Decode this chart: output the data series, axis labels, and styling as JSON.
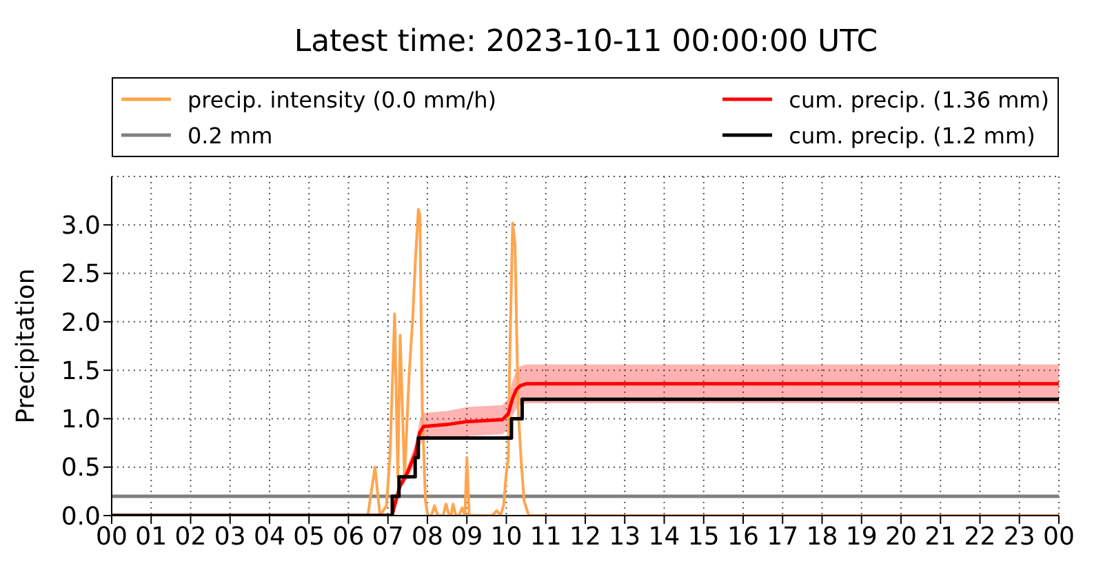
{
  "chart_data": {
    "type": "line",
    "title": "Latest time: 2023-10-11 00:00:00 UTC",
    "ylabel": "Precipitation",
    "xlim": [
      0,
      24
    ],
    "xticks": [
      {
        "value": 0,
        "label": "00"
      },
      {
        "value": 1,
        "label": "01"
      },
      {
        "value": 2,
        "label": "02"
      },
      {
        "value": 3,
        "label": "03"
      },
      {
        "value": 4,
        "label": "04"
      },
      {
        "value": 5,
        "label": "05"
      },
      {
        "value": 6,
        "label": "06"
      },
      {
        "value": 7,
        "label": "07"
      },
      {
        "value": 8,
        "label": "08"
      },
      {
        "value": 9,
        "label": "09"
      },
      {
        "value": 10,
        "label": "10"
      },
      {
        "value": 11,
        "label": "11"
      },
      {
        "value": 12,
        "label": "12"
      },
      {
        "value": 13,
        "label": "13"
      },
      {
        "value": 14,
        "label": "14"
      },
      {
        "value": 15,
        "label": "15"
      },
      {
        "value": 16,
        "label": "16"
      },
      {
        "value": 17,
        "label": "17"
      },
      {
        "value": 18,
        "label": "18"
      },
      {
        "value": 19,
        "label": "19"
      },
      {
        "value": 20,
        "label": "20"
      },
      {
        "value": 21,
        "label": "21"
      },
      {
        "value": 22,
        "label": "22"
      },
      {
        "value": 23,
        "label": "23"
      },
      {
        "value": 24,
        "label": "00"
      }
    ],
    "ylim": [
      0,
      3.5
    ],
    "yticks": [
      {
        "value": 0,
        "label": "0.0"
      },
      {
        "value": 0.5,
        "label": "0.5"
      },
      {
        "value": 1,
        "label": "1.0"
      },
      {
        "value": 1.5,
        "label": "1.5"
      },
      {
        "value": 2,
        "label": "2.0"
      },
      {
        "value": 2.5,
        "label": "2.5"
      },
      {
        "value": 3,
        "label": "3.0"
      }
    ],
    "grid": true,
    "legend": "top",
    "marker": "none",
    "line_style": "solid",
    "ref_lines": [
      {
        "axis": "y",
        "value": 0.2,
        "label": "0.2 mm",
        "color": "#808080"
      }
    ],
    "series": [
      {
        "name": "precip. intensity (0.0 mm/h)",
        "color": "#ffa54f",
        "x": [
          0,
          6.49,
          6.67,
          6.8,
          6.96,
          7.05,
          7.17,
          7.25,
          7.31,
          7.42,
          7.54,
          7.63,
          7.69,
          7.77,
          7.81,
          7.87,
          7.95,
          8.01,
          8.1,
          8.18,
          8.26,
          8.4,
          8.47,
          8.55,
          8.6,
          8.65,
          8.72,
          8.8,
          8.88,
          8.95,
          9.0,
          9.06,
          9.64,
          9.76,
          9.85,
          9.93,
          9.99,
          10.05,
          10.08,
          10.16,
          10.22,
          10.3,
          10.37,
          10.45,
          10.57,
          24
        ],
        "values": [
          0,
          0,
          0.5,
          0,
          0.1,
          0.6,
          2.08,
          0.4,
          1.86,
          0.39,
          1.48,
          2.05,
          2.59,
          3.16,
          3.1,
          1.1,
          0.15,
          0,
          0,
          0.1,
          0,
          0,
          0.12,
          0,
          0,
          0.12,
          0,
          0,
          0.08,
          0,
          0.6,
          0,
          0,
          0.05,
          0,
          0.1,
          0.4,
          0.6,
          1.5,
          3.02,
          2.8,
          1.1,
          0.6,
          0.15,
          0,
          0
        ]
      },
      {
        "name": "cum. precip. (1.36 mm)",
        "color": "#ff0000",
        "x": [
          0,
          7.1,
          7.2,
          7.3,
          7.5,
          7.7,
          7.8,
          7.9,
          8.5,
          9.0,
          9.9,
          10.05,
          10.15,
          10.25,
          10.35,
          10.5,
          24
        ],
        "values": [
          0,
          0,
          0.15,
          0.3,
          0.45,
          0.65,
          0.85,
          0.92,
          0.94,
          0.97,
          0.99,
          1.05,
          1.2,
          1.3,
          1.34,
          1.36,
          1.36
        ],
        "lower": [
          0,
          0,
          0.13,
          0.26,
          0.38,
          0.55,
          0.72,
          0.78,
          0.8,
          0.82,
          0.84,
          0.89,
          1.02,
          1.1,
          1.14,
          1.16,
          1.16
        ],
        "upper": [
          0,
          0,
          0.17,
          0.35,
          0.52,
          0.75,
          0.98,
          1.06,
          1.08,
          1.12,
          1.14,
          1.21,
          1.38,
          1.5,
          1.54,
          1.56,
          1.56
        ]
      },
      {
        "name": "cum. precip. (1.2 mm)",
        "color": "#000000",
        "type": "step",
        "x": [
          0,
          7.11,
          7.28,
          7.69,
          7.77,
          10.13,
          10.4,
          24
        ],
        "values": [
          0,
          0.2,
          0.4,
          0.6,
          0.8,
          1.0,
          1.2,
          1.2
        ]
      }
    ]
  }
}
